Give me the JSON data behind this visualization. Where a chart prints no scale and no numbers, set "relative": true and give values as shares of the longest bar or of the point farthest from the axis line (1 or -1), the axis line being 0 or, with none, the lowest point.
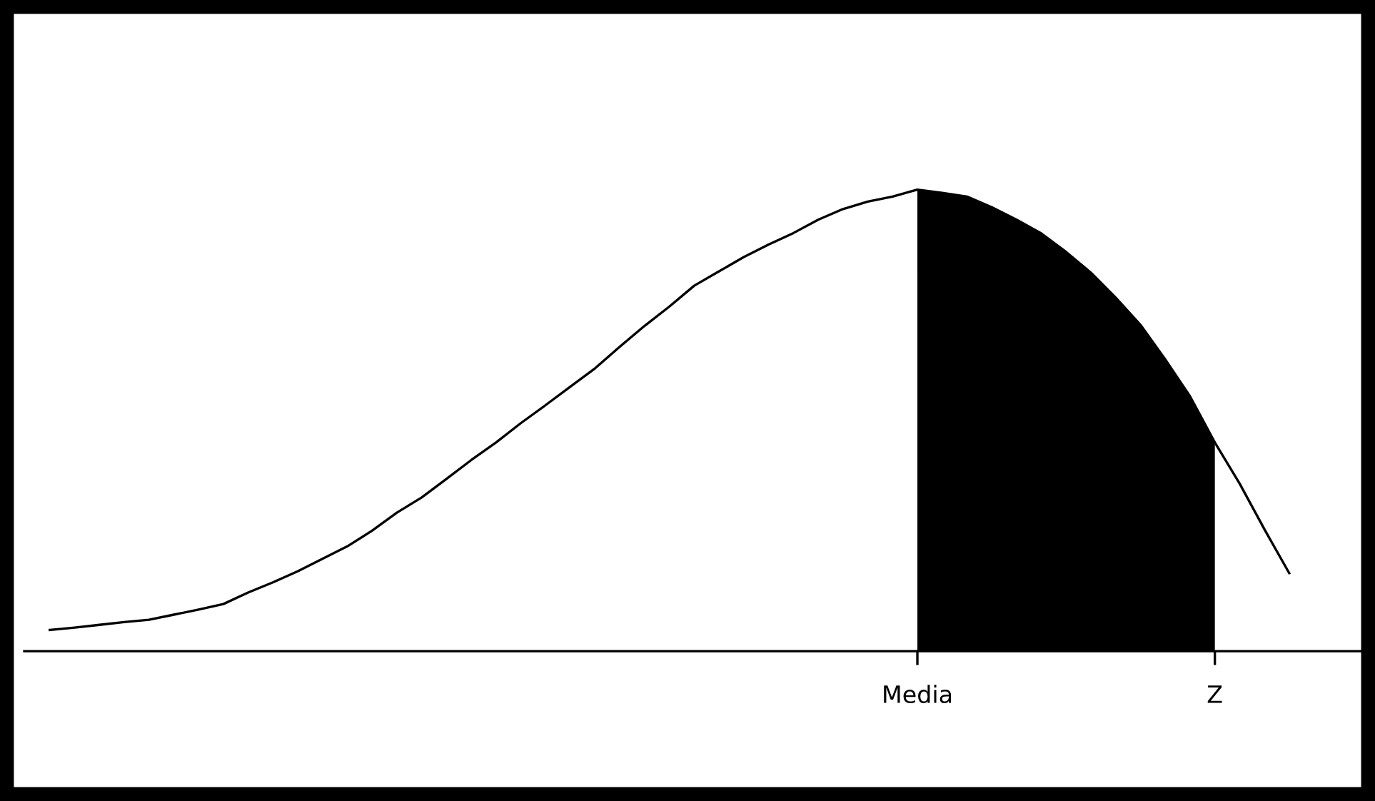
{
  "chart_data": {
    "type": "line",
    "relative": true,
    "categories": [
      null,
      null,
      null,
      null,
      null,
      null,
      null,
      null,
      null,
      null,
      null,
      null,
      null,
      null,
      null,
      null,
      null,
      null,
      null,
      null,
      null,
      null,
      null,
      null,
      null,
      null,
      null,
      null,
      null,
      null,
      null,
      null,
      null,
      null,
      null,
      "Media",
      null,
      null,
      null,
      null,
      null,
      null,
      null,
      null,
      null,
      null,
      null,
      "Z",
      null,
      null,
      null
    ],
    "series": [
      {
        "color": "#000000",
        "values": [
          0.046,
          0.051,
          0.057,
          0.063,
          0.068,
          0.079,
          0.09,
          0.102,
          0.127,
          0.149,
          0.173,
          0.2,
          0.227,
          0.261,
          0.3,
          0.333,
          0.373,
          0.414,
          0.452,
          0.494,
          0.533,
          0.573,
          0.613,
          0.66,
          0.705,
          0.747,
          0.792,
          0.823,
          0.854,
          0.881,
          0.906,
          0.935,
          0.958,
          0.974,
          0.985,
          1,
          0.993,
          0.985,
          0.962,
          0.935,
          0.905,
          0.865,
          0.82,
          0.766,
          0.707,
          0.632,
          0.552,
          0.452,
          0.363,
          0.264,
          0.169
        ]
      },
      {
        "type": "area",
        "color": "#000000",
        "values": [
          null,
          null,
          null,
          null,
          null,
          null,
          null,
          null,
          null,
          null,
          null,
          null,
          null,
          null,
          null,
          null,
          null,
          null,
          null,
          null,
          null,
          null,
          null,
          null,
          null,
          null,
          null,
          null,
          null,
          null,
          null,
          null,
          null,
          null,
          null,
          1,
          0.993,
          0.985,
          0.962,
          0.935,
          0.905,
          0.865,
          0.82,
          0.766,
          0.707,
          0.632,
          0.552,
          0.452,
          null,
          null,
          null
        ]
      }
    ],
    "grid": false,
    "legend": false
  }
}
